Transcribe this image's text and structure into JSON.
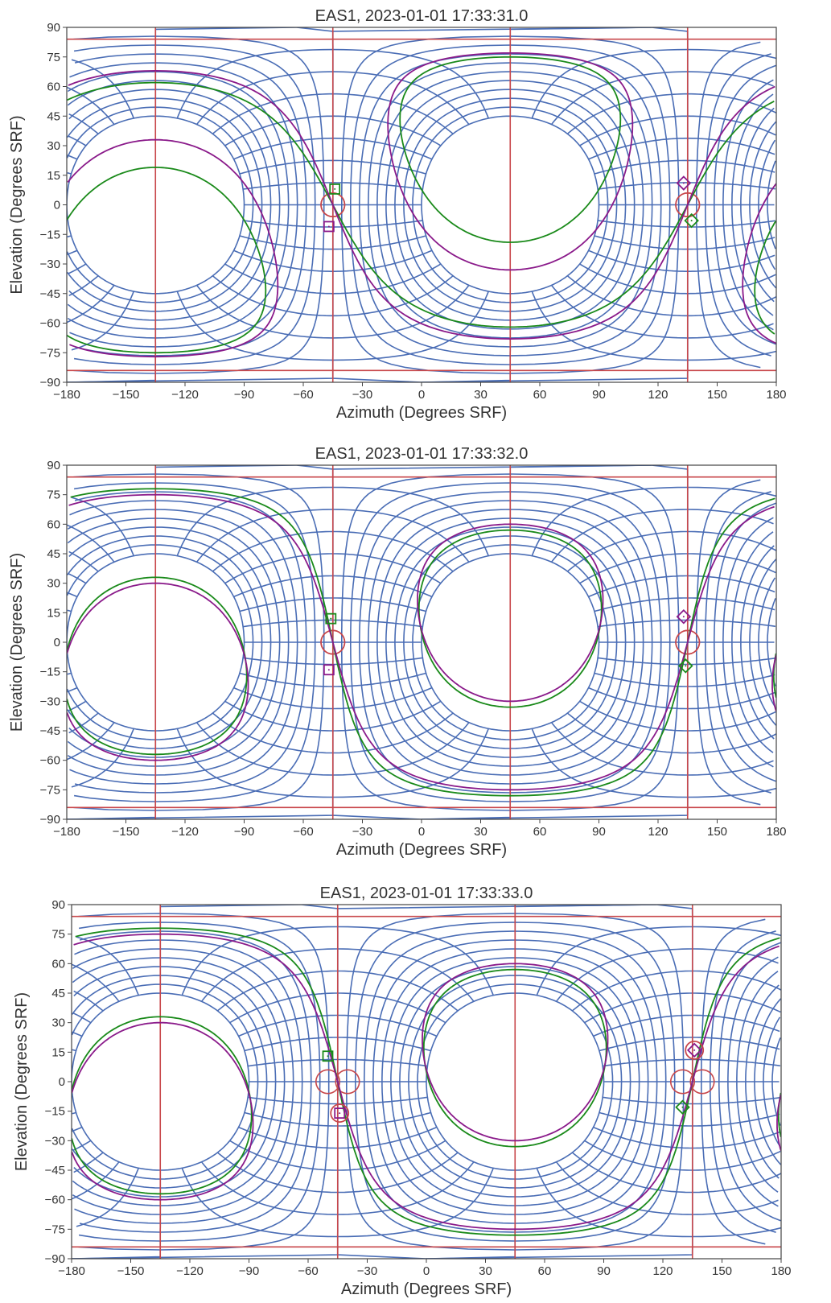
{
  "colors": {
    "grid": "#4a6db5",
    "red": "#c8474b",
    "green": "#1a8a1a",
    "purple": "#8a1a8a",
    "axes": "#444444"
  },
  "chart_data": [
    {
      "type": "scatter",
      "title": "EAS1, 2023-01-01 17:33:31.0",
      "xlabel": "Azimuth (Degrees SRF)",
      "ylabel": "Elevation (Degrees SRF)",
      "xlim": [
        -180,
        180
      ],
      "ylim": [
        -90,
        90
      ],
      "xticks": [
        "−180",
        "−150",
        "−120",
        "−90",
        "−60",
        "−30",
        "0",
        "30",
        "60",
        "90",
        "120",
        "150",
        "180"
      ],
      "yticks": [
        "90",
        "75",
        "60",
        "45",
        "30",
        "15",
        "0",
        "−15",
        "−30",
        "−45",
        "−60",
        "−75",
        "−90"
      ],
      "grid_poles": [
        {
          "az": -135,
          "el": 0
        },
        {
          "az": 45,
          "el": 0
        }
      ],
      "red_poles_az": [
        -45,
        135
      ],
      "red_dev": 0,
      "fields": [
        {
          "name": "green",
          "pole": {
            "az": 45,
            "el": 28
          },
          "twist": -22,
          "sense": -1,
          "ring_radius": 47
        },
        {
          "name": "purple",
          "pole": {
            "az": -135,
            "el": -22
          },
          "twist": 20,
          "sense": 1,
          "ring_radius": 55
        }
      ],
      "markers": [
        {
          "shape": "square",
          "color": "green",
          "az": -44,
          "el": 8
        },
        {
          "shape": "square",
          "color": "purple",
          "az": -47,
          "el": -11
        },
        {
          "shape": "diamond",
          "color": "purple",
          "az": 133,
          "el": 11
        },
        {
          "shape": "diamond",
          "color": "green",
          "az": 137,
          "el": -8
        }
      ]
    },
    {
      "type": "scatter",
      "title": "EAS1, 2023-01-01 17:33:32.0",
      "xlabel": "Azimuth (Degrees SRF)",
      "ylabel": "Elevation (Degrees SRF)",
      "xlim": [
        -180,
        180
      ],
      "ylim": [
        -90,
        90
      ],
      "xticks": [
        "−180",
        "−150",
        "−120",
        "−90",
        "−60",
        "−30",
        "0",
        "30",
        "60",
        "90",
        "120",
        "150",
        "180"
      ],
      "yticks": [
        "90",
        "75",
        "60",
        "45",
        "30",
        "15",
        "0",
        "−15",
        "−30",
        "−45",
        "−60",
        "−75",
        "−90"
      ],
      "grid_poles": [
        {
          "az": -135,
          "el": 0
        },
        {
          "az": 45,
          "el": 0
        }
      ],
      "red_poles_az": [
        -45,
        135
      ],
      "red_dev": 0,
      "fields": [
        {
          "name": "green",
          "pole": {
            "az": 45,
            "el": 12
          },
          "twist": -10,
          "sense": -1,
          "ring_radius": 45
        },
        {
          "name": "purple",
          "pole": {
            "az": -135,
            "el": -15
          },
          "twist": 12,
          "sense": 1,
          "ring_radius": 45
        }
      ],
      "markers": [
        {
          "shape": "square",
          "color": "green",
          "az": -46,
          "el": 12
        },
        {
          "shape": "square",
          "color": "purple",
          "az": -47,
          "el": -14
        },
        {
          "shape": "diamond",
          "color": "purple",
          "az": 133,
          "el": 13
        },
        {
          "shape": "diamond",
          "color": "green",
          "az": 134,
          "el": -12
        }
      ]
    },
    {
      "type": "scatter",
      "title": "EAS1, 2023-01-01 17:33:33.0",
      "xlabel": "Azimuth (Degrees SRF)",
      "ylabel": "Elevation (Degrees SRF)",
      "xlim": [
        -180,
        180
      ],
      "ylim": [
        -90,
        90
      ],
      "xticks": [
        "−180",
        "−150",
        "−120",
        "−90",
        "−60",
        "−30",
        "0",
        "30",
        "60",
        "90",
        "120",
        "150",
        "180"
      ],
      "yticks": [
        "90",
        "75",
        "60",
        "45",
        "30",
        "15",
        "0",
        "−15",
        "−30",
        "−45",
        "−60",
        "−75",
        "−90"
      ],
      "grid_poles": [
        {
          "az": -135,
          "el": 0
        },
        {
          "az": 45,
          "el": 0
        }
      ],
      "red_poles_az": [
        -45,
        135
      ],
      "red_dev": 5,
      "fields": [
        {
          "name": "green",
          "pole": {
            "az": 45,
            "el": 12
          },
          "twist": -10,
          "sense": -1,
          "ring_radius": 45
        },
        {
          "name": "purple",
          "pole": {
            "az": -135,
            "el": -15
          },
          "twist": 12,
          "sense": 1,
          "ring_radius": 45
        }
      ],
      "markers": [
        {
          "shape": "square",
          "color": "green",
          "az": -50,
          "el": 13
        },
        {
          "shape": "square",
          "color": "purple",
          "az": -44,
          "el": -16
        },
        {
          "shape": "circle",
          "color": "red",
          "az": -44,
          "el": -16
        },
        {
          "shape": "diamond",
          "color": "purple",
          "az": 136,
          "el": 16
        },
        {
          "shape": "circle",
          "color": "red",
          "az": 136,
          "el": 16
        },
        {
          "shape": "diamond",
          "color": "green",
          "az": 130,
          "el": -13
        }
      ]
    }
  ]
}
